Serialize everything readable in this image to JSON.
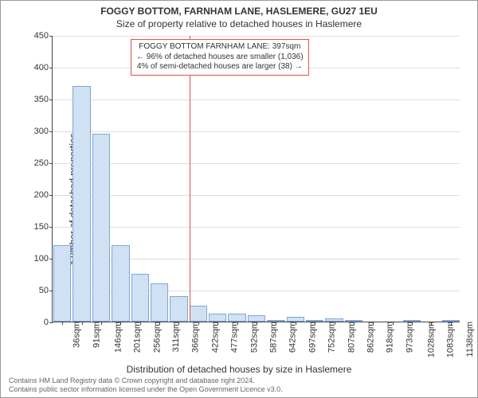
{
  "title": "FOGGY BOTTOM, FARNHAM LANE, HASLEMERE, GU27 1EU",
  "subtitle": "Size of property relative to detached houses in Haslemere",
  "y_axis_label": "Number of detached properties",
  "x_axis_label": "Distribution of detached houses by size in Haslemere",
  "footer_line1": "Contains HM Land Registry data © Crown copyright and database right 2024.",
  "footer_line2": "Contains public sector information licensed under the Open Government Licence v3.0.",
  "chart": {
    "type": "histogram",
    "ylim": [
      0,
      450
    ],
    "ytick_step": 50,
    "bar_fill": "#cfe1f3",
    "bar_stroke": "#7da7d9",
    "grid_color": "#dddddd",
    "axis_color": "#444444",
    "background": "#ffffff",
    "marker_color": "#d9534f",
    "annotation_border": "#d9534f",
    "marker_x_label": "397sqm",
    "categories": [
      "36sqm",
      "91sqm",
      "146sqm",
      "201sqm",
      "256sqm",
      "311sqm",
      "366sqm",
      "422sqm",
      "477sqm",
      "532sqm",
      "587sqm",
      "642sqm",
      "697sqm",
      "752sqm",
      "807sqm",
      "862sqm",
      "918sqm",
      "973sqm",
      "1028sqm",
      "1083sqm",
      "1138sqm"
    ],
    "values": [
      120,
      370,
      295,
      120,
      75,
      60,
      40,
      25,
      12,
      12,
      10,
      2,
      8,
      2,
      5,
      2,
      0,
      0,
      2,
      0,
      2
    ],
    "annotation_lines": [
      "FOGGY BOTTOM FARNHAM LANE: 397sqm",
      "← 96% of detached houses are smaller (1,036)",
      "4% of semi-detached houses are larger (38) →"
    ]
  }
}
